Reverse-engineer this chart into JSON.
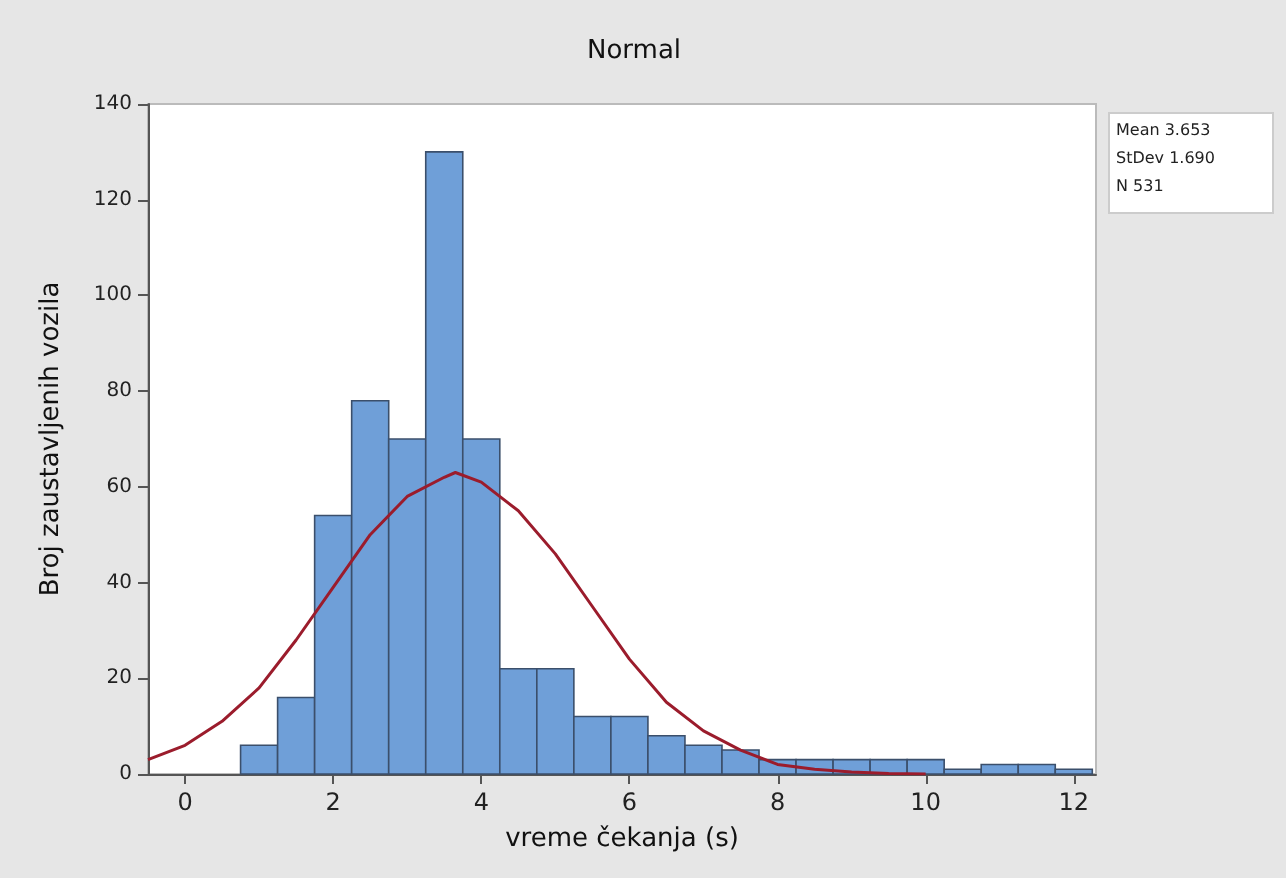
{
  "chart_data": {
    "type": "histogram",
    "title": "Normal",
    "xlabel": "vreme čekanja (s)",
    "ylabel": "Broj zaustavljenih vozila",
    "bins": [
      0.75,
      1.25,
      1.75,
      2.25,
      2.75,
      3.25,
      3.75,
      4.25,
      4.75,
      5.25,
      5.75,
      6.25,
      6.75,
      7.25,
      7.75,
      8.25,
      8.75,
      9.25,
      9.75,
      10.25,
      10.75,
      11.25,
      11.75,
      12.25
    ],
    "values": [
      6,
      16,
      54,
      78,
      70,
      130,
      70,
      22,
      22,
      12,
      12,
      8,
      6,
      5,
      3,
      3,
      3,
      3,
      3,
      1,
      2,
      2,
      1
    ],
    "color": "#6f9fd8",
    "series": [
      {
        "type": "line",
        "color": "#9b1c2c",
        "x": [
          -0.5,
          0,
          0.5,
          1,
          1.5,
          2,
          2.5,
          3,
          3.5,
          3.65,
          4,
          4.5,
          5,
          5.5,
          6,
          6.5,
          7,
          7.5,
          8,
          8.5,
          9,
          9.5,
          10
        ],
        "values": [
          3,
          6,
          11,
          18,
          28,
          39,
          50,
          58,
          62,
          63,
          61,
          55,
          46,
          35,
          24,
          15,
          9,
          5,
          2,
          1,
          0.4,
          0.1,
          0
        ]
      }
    ],
    "xlim": [
      -0.5,
      12.3
    ],
    "xticks": [
      0,
      2,
      4,
      6,
      8,
      10,
      12
    ],
    "ylim": [
      0,
      140
    ],
    "yticks": [
      0,
      20,
      40,
      60,
      80,
      100,
      120,
      140
    ],
    "grid": false,
    "annotations": [
      "Mean 3.653",
      "StDev 1.690",
      "N 531"
    ]
  }
}
